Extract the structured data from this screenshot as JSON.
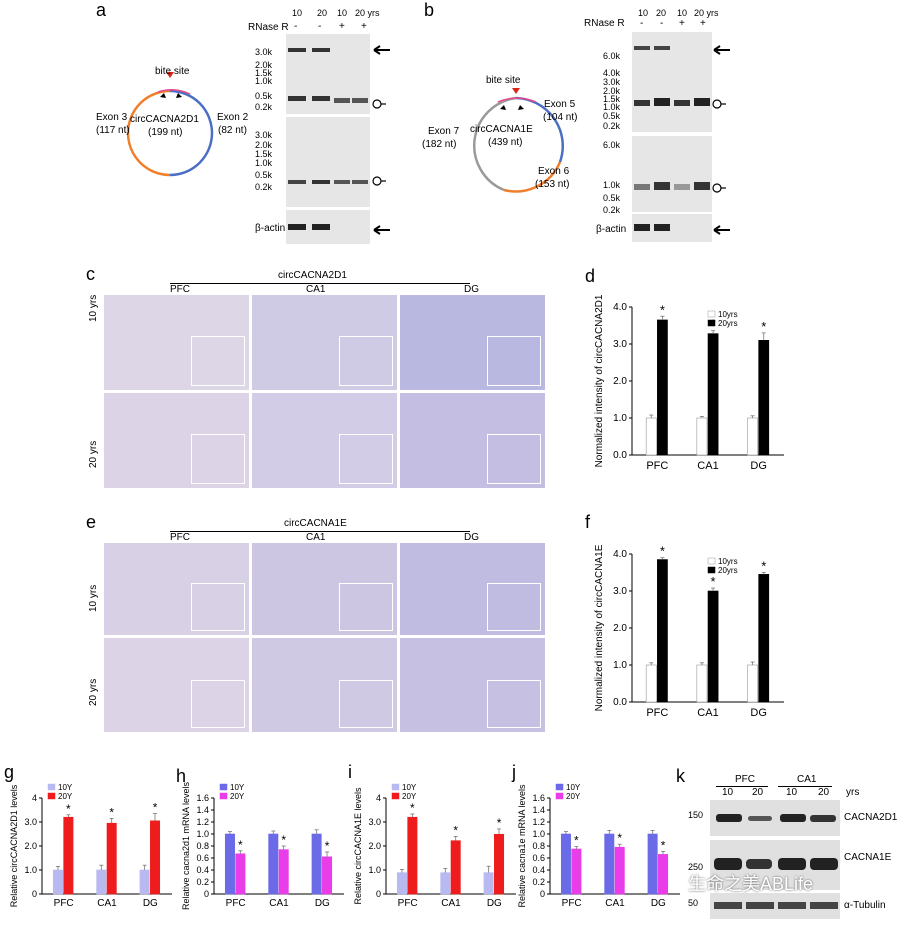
{
  "panels": {
    "a": {
      "letter": "a",
      "circ_name": "circCACNA2D1",
      "circ_len": "(199  nt)",
      "bite_site": "bite site",
      "exon_left": "Exon 3",
      "exon_left_len": "(117  nt)",
      "exon_right": "Exon 2",
      "exon_right_len": "(82 nt)",
      "rnase_label": "RNase R",
      "lane_headers": [
        "10",
        "20",
        "10",
        "20 yrs"
      ],
      "rnase_signs": [
        "-",
        "-",
        "+",
        "+"
      ],
      "marker_top": [
        "3.0k",
        "2.0k",
        "1.5k",
        "1.0k",
        "0.5k",
        "0.2k"
      ],
      "marker_mid": [
        "3.0k",
        "2.0k",
        "1.5k",
        "1.0k",
        "0.5k",
        "0.2k"
      ],
      "actin": "β-actin",
      "colors": {
        "exon_left": "#f07f2c",
        "exon_right": "#4a6fc4",
        "bite": "#d9261c"
      }
    },
    "b": {
      "letter": "b",
      "circ_name": "circCACNA1E",
      "circ_len": "(439  nt)",
      "bite_site": "bite site",
      "exon_left": "Exon 7",
      "exon_left_len": "(182  nt)",
      "exon_right": "Exon 5",
      "exon_right_len": "(104  nt)",
      "exon_bottom": "Exon 6",
      "exon_bottom_len": "(153  nt)",
      "rnase_label": "RNase R",
      "lane_headers": [
        "10",
        "20",
        "10",
        "20 yrs"
      ],
      "rnase_signs": [
        "-",
        "-",
        "+",
        "+"
      ],
      "marker_top": [
        "6.0k",
        "4.0k",
        "3.0k",
        "2.0k",
        "1.5k",
        "1.0k",
        "0.5k",
        "0.2k"
      ],
      "marker_mid": [
        "6.0k",
        "1.0k",
        "0.5k",
        "0.2k"
      ],
      "actin": "β-actin",
      "colors": {
        "exon_left": "#9a9a9a",
        "exon_right": "#4a6fc4",
        "exon_bottom": "#f07f2c",
        "bite": "#d9261c"
      }
    },
    "c": {
      "letter": "c",
      "title": "circCACNA2D1",
      "columns": [
        "PFC",
        "CA1",
        "DG"
      ],
      "rows": [
        "10 yrs",
        "20 yrs"
      ]
    },
    "e": {
      "letter": "e",
      "title": "circCACNA1E",
      "columns": [
        "PFC",
        "CA1",
        "DG"
      ],
      "rows": [
        "10 yrs",
        "20 yrs"
      ]
    },
    "k": {
      "letter": "k",
      "groups": [
        "PFC",
        "CA1"
      ],
      "lanes": [
        "10",
        "20",
        "10",
        "20"
      ],
      "yrs": "yrs",
      "markers": [
        "150",
        "250",
        "50"
      ],
      "bands": [
        "CACNA2D1",
        "CACNA1E",
        "α-Tubulin"
      ]
    }
  },
  "watermark": "生命之美ABLife",
  "chart_data": [
    {
      "id": "d",
      "letter": "d",
      "type": "bar",
      "categories": [
        "PFC",
        "CA1",
        "DG"
      ],
      "series": [
        {
          "name": "10yrs",
          "values": [
            1.0,
            1.0,
            1.0
          ],
          "errors": [
            0.08,
            0.04,
            0.06
          ],
          "color": "#ffffff"
        },
        {
          "name": "20yrs",
          "values": [
            3.65,
            3.28,
            3.1
          ],
          "errors": [
            0.1,
            0.08,
            0.2
          ],
          "color": "#000000"
        }
      ],
      "ylabel": "Normalized intensity of circCACNA2D1",
      "ylim": [
        0,
        4.0
      ],
      "yticks": [
        "0.0",
        "1.0",
        "2.0",
        "3.0",
        "4.0"
      ],
      "sig": [
        "*",
        "*",
        "*"
      ]
    },
    {
      "id": "f",
      "letter": "f",
      "type": "bar",
      "categories": [
        "PFC",
        "CA1",
        "DG"
      ],
      "series": [
        {
          "name": "10yrs",
          "values": [
            1.0,
            1.0,
            1.0
          ],
          "errors": [
            0.06,
            0.06,
            0.08
          ],
          "color": "#ffffff"
        },
        {
          "name": "20yrs",
          "values": [
            3.85,
            3.0,
            3.45
          ],
          "errors": [
            0.05,
            0.08,
            0.05
          ],
          "color": "#000000"
        }
      ],
      "ylabel": "Normalized intensity of circCACNA1E",
      "ylim": [
        0,
        4.0
      ],
      "yticks": [
        "0.0",
        "1.0",
        "2.0",
        "3.0",
        "4.0"
      ],
      "sig": [
        "*",
        "*",
        "*"
      ]
    },
    {
      "id": "g",
      "letter": "g",
      "type": "bar",
      "categories": [
        "PFC",
        "CA1",
        "DG"
      ],
      "series": [
        {
          "name": "10Y",
          "values": [
            1.0,
            1.0,
            1.0
          ],
          "errors": [
            0.15,
            0.2,
            0.2
          ],
          "color": "#b9b9f2"
        },
        {
          "name": "20Y",
          "values": [
            3.2,
            2.95,
            3.05
          ],
          "errors": [
            0.1,
            0.2,
            0.3
          ],
          "color": "#ee1c1c"
        }
      ],
      "ylabel": "Relative circCACNA2D1 levels",
      "ylim": [
        0,
        4
      ],
      "yticks": [
        "0",
        "1.0",
        "2.0",
        "3.0",
        "4"
      ],
      "sig": [
        "*",
        "*",
        "*"
      ]
    },
    {
      "id": "h",
      "letter": "h",
      "type": "bar",
      "categories": [
        "PFC",
        "CA1",
        "DG"
      ],
      "series": [
        {
          "name": "10Y",
          "values": [
            1.0,
            1.0,
            1.0
          ],
          "errors": [
            0.04,
            0.05,
            0.07
          ],
          "color": "#6b6be8"
        },
        {
          "name": "20Y",
          "values": [
            0.67,
            0.74,
            0.62
          ],
          "errors": [
            0.05,
            0.06,
            0.08
          ],
          "color": "#e83de8"
        }
      ],
      "ylabel": "Relative cacna2d1 mRNA levels",
      "ylim": [
        0,
        1.6
      ],
      "yticks": [
        "0",
        "0.2",
        "0.4",
        "0.6",
        "0.8",
        "1.0",
        "1.2",
        "1.4",
        "1.6"
      ],
      "sig": [
        "*",
        "*",
        "*"
      ]
    },
    {
      "id": "i",
      "letter": "i",
      "type": "bar",
      "categories": [
        "PFC",
        "CA1",
        "DG"
      ],
      "series": [
        {
          "name": "10Y",
          "values": [
            1.0,
            1.0,
            1.0
          ],
          "errors": [
            0.15,
            0.2,
            0.3
          ],
          "color": "#b9b9f2"
        },
        {
          "name": "20Y",
          "values": [
            3.6,
            2.5,
            2.8
          ],
          "errors": [
            0.15,
            0.2,
            0.25
          ],
          "color": "#ee1c1c"
        }
      ],
      "ylabel": "Relative circCACNA1E levels",
      "ylim": [
        0,
        4.5
      ],
      "yticks": [
        "0",
        "1.0",
        "2.0",
        "3.0",
        "4"
      ],
      "sig": [
        "*",
        "*",
        "*"
      ]
    },
    {
      "id": "j",
      "letter": "j",
      "type": "bar",
      "categories": [
        "PFC",
        "CA1",
        "DG"
      ],
      "series": [
        {
          "name": "10Y",
          "values": [
            1.0,
            1.0,
            1.0
          ],
          "errors": [
            0.04,
            0.06,
            0.06
          ],
          "color": "#6b6be8"
        },
        {
          "name": "20Y",
          "values": [
            0.75,
            0.78,
            0.66
          ],
          "errors": [
            0.04,
            0.05,
            0.05
          ],
          "color": "#e83de8"
        }
      ],
      "ylabel": "Relative cacna1e mRNA levels",
      "ylim": [
        0,
        1.6
      ],
      "yticks": [
        "0",
        "0.2",
        "0.4",
        "0.6",
        "0.8",
        "1.0",
        "1.2",
        "1.4",
        "1.6"
      ],
      "sig": [
        "*",
        "*",
        "*"
      ]
    }
  ]
}
